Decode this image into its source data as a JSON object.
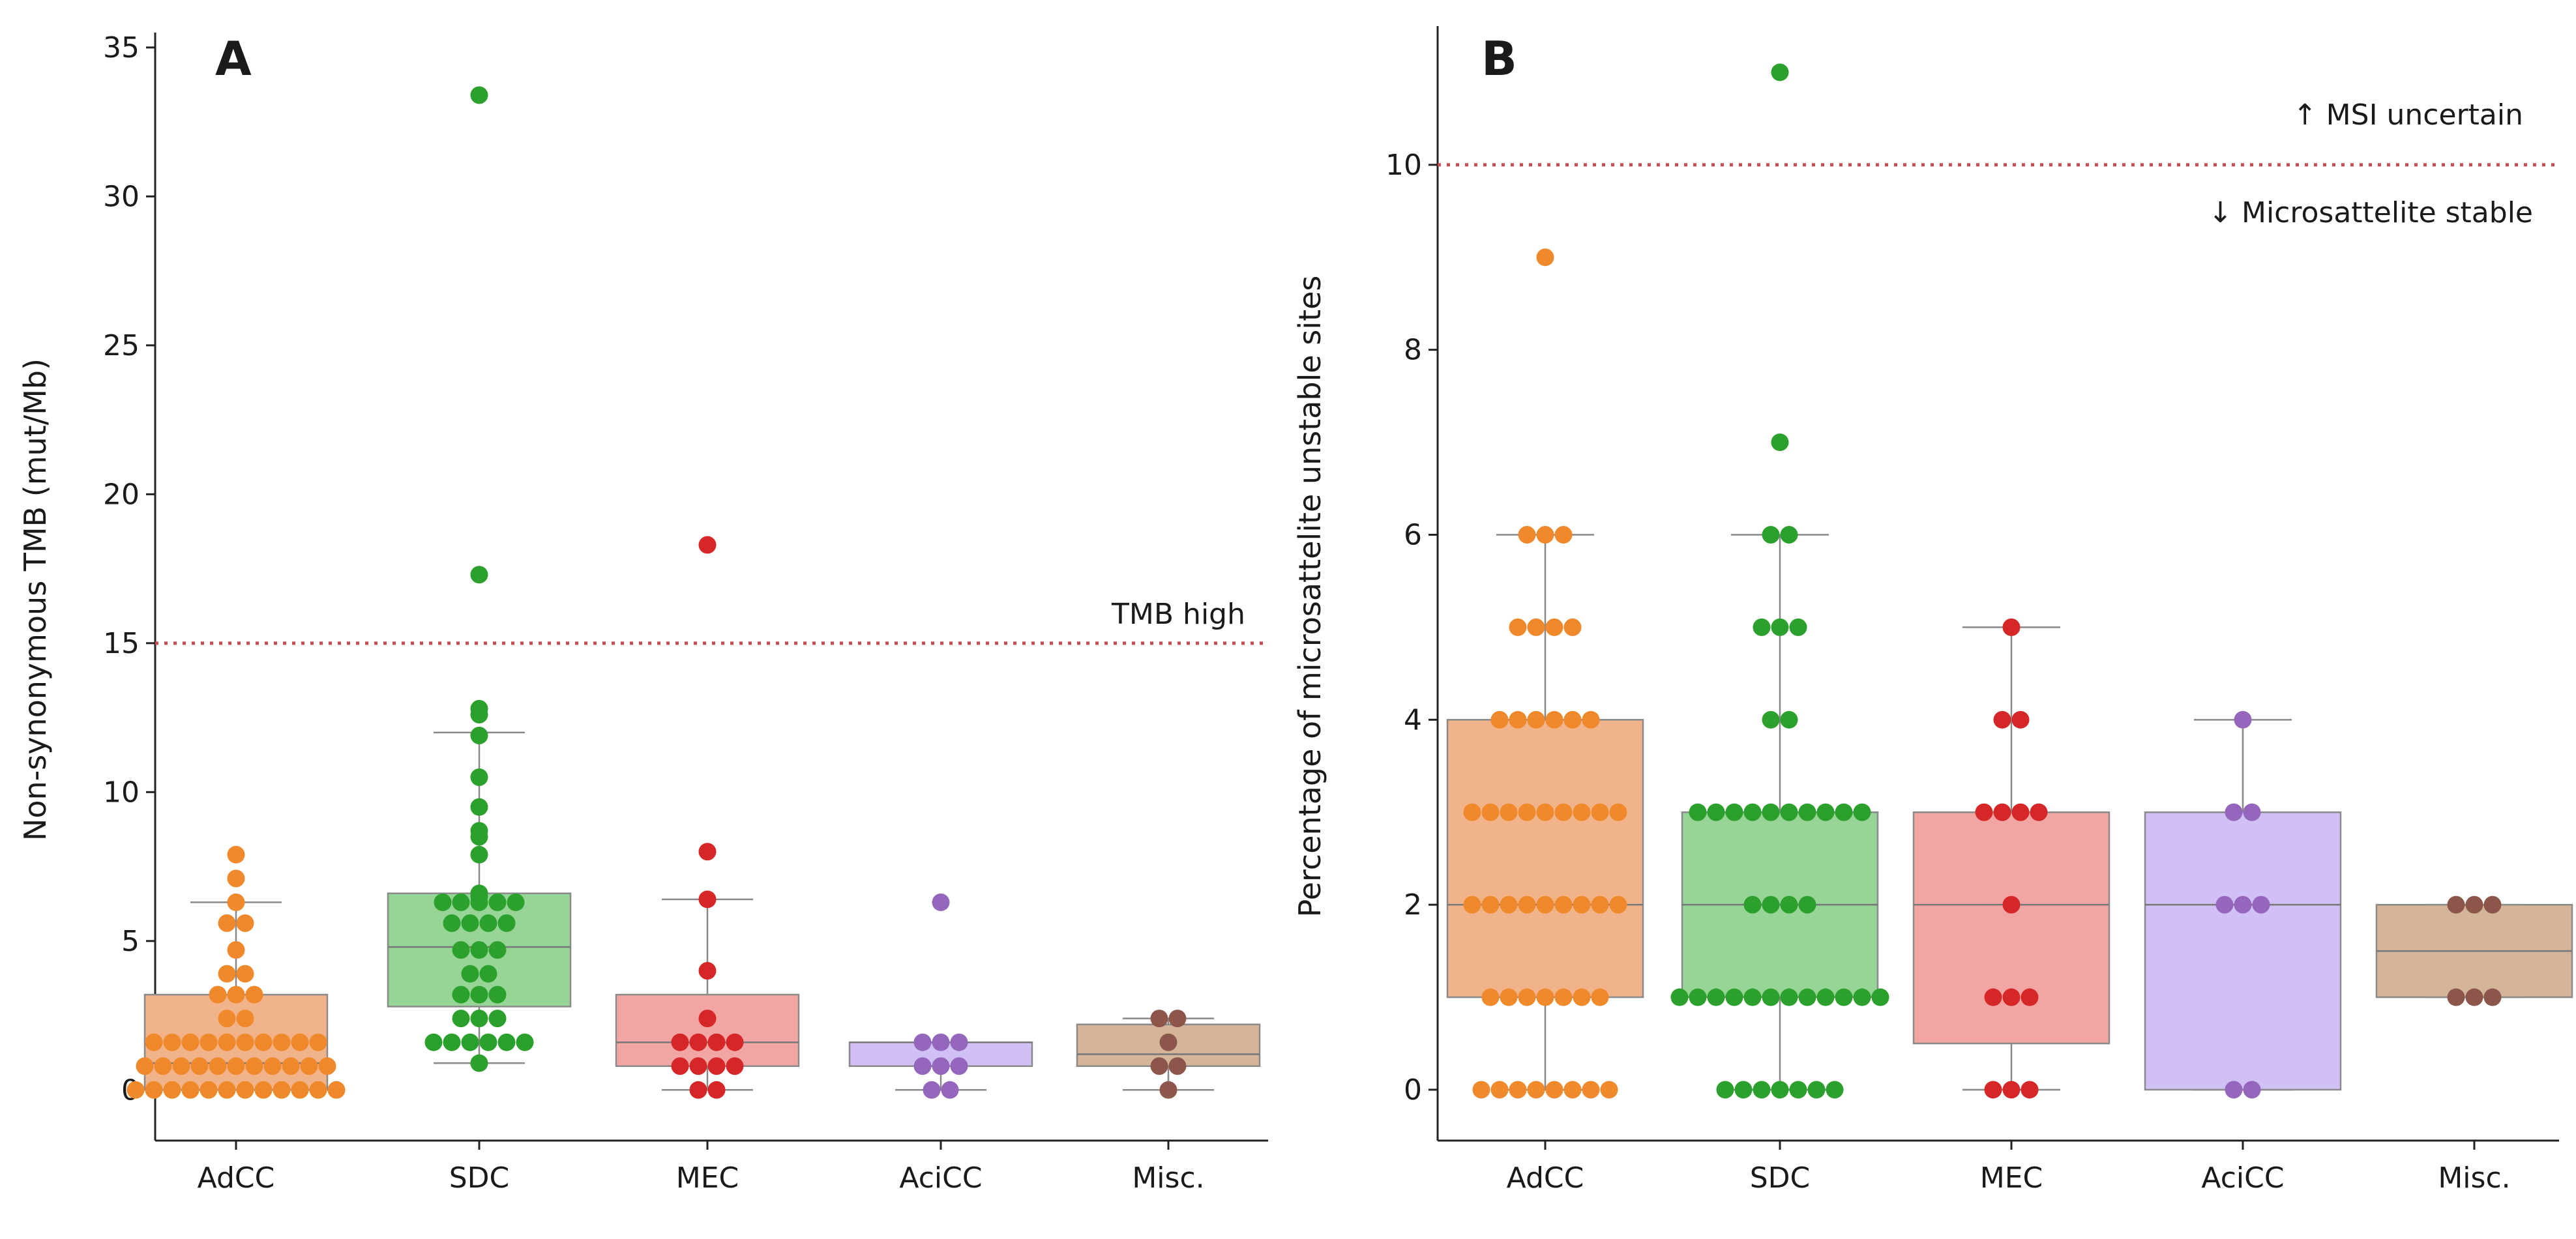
{
  "chart_data": [
    {
      "type": "box",
      "panel_label": "A",
      "ylabel": "Non-synonymous TMB (mut/Mb)",
      "ylim": [
        -1.7,
        35.5
      ],
      "yticks": [
        0,
        5,
        10,
        15,
        20,
        25,
        30,
        35
      ],
      "categories": [
        "AdCC",
        "SDC",
        "MEC",
        "AciCC",
        "Misc."
      ],
      "threshold": {
        "value": 15,
        "label": "TMB high"
      },
      "groups": [
        {
          "name": "AdCC",
          "color": "#f0892b",
          "fill": "#f1b38a",
          "q1": 0.0,
          "median": 0.9,
          "q3": 3.2,
          "whisker_low": 0,
          "whisker_high": 6.3,
          "points": [
            0,
            0,
            0,
            0,
            0,
            0,
            0,
            0,
            0,
            0,
            0,
            0,
            0.8,
            0.8,
            0.8,
            0.8,
            0.8,
            0.8,
            0.8,
            0.8,
            0.8,
            0.8,
            0.8,
            1.6,
            1.6,
            1.6,
            1.6,
            1.6,
            1.6,
            1.6,
            1.6,
            1.6,
            1.6,
            2.4,
            2.4,
            3.2,
            3.2,
            3.2,
            3.9,
            3.9,
            4.7,
            5.6,
            5.6,
            6.3,
            7.1,
            7.9
          ]
        },
        {
          "name": "SDC",
          "color": "#2ca02c",
          "fill": "#96d596",
          "q1": 2.8,
          "median": 4.8,
          "q3": 6.6,
          "whisker_low": 0.9,
          "whisker_high": 12.0,
          "points": [
            0.9,
            1.6,
            1.6,
            1.6,
            1.6,
            1.6,
            1.6,
            2.4,
            2.4,
            2.4,
            3.2,
            3.2,
            3.2,
            3.9,
            3.9,
            4.7,
            4.7,
            4.7,
            5.6,
            5.6,
            5.6,
            5.6,
            6.3,
            6.3,
            6.3,
            6.3,
            6.3,
            6.5,
            6.6,
            7.9,
            8.5,
            8.7,
            9.5,
            10.5,
            11.9,
            12.6,
            12.8,
            17.3,
            33.4
          ]
        },
        {
          "name": "MEC",
          "color": "#d62728",
          "fill": "#f2a6a3",
          "q1": 0.8,
          "median": 1.6,
          "q3": 3.2,
          "whisker_low": 0,
          "whisker_high": 6.4,
          "points": [
            0,
            0,
            0.8,
            0.8,
            0.8,
            0.8,
            1.6,
            1.6,
            1.6,
            1.6,
            2.4,
            4.0,
            6.4,
            8.0,
            18.3
          ]
        },
        {
          "name": "AciCC",
          "color": "#9467bd",
          "fill": "#d1c0f5",
          "q1": 0.8,
          "median": 1.6,
          "q3": 1.6,
          "whisker_low": 0,
          "whisker_high": 1.6,
          "points": [
            0,
            0,
            0.8,
            0.8,
            0.8,
            1.6,
            1.6,
            1.6,
            6.3
          ]
        },
        {
          "name": "Misc.",
          "color": "#8c564b",
          "fill": "#d4b59a",
          "q1": 0.8,
          "median": 1.2,
          "q3": 2.2,
          "whisker_low": 0,
          "whisker_high": 2.4,
          "points": [
            0,
            0.8,
            0.8,
            1.6,
            2.4,
            2.4
          ]
        }
      ]
    },
    {
      "type": "box",
      "panel_label": "B",
      "ylabel": "Percentage of microsattelite unstable sites",
      "ylim": [
        -0.55,
        11.5
      ],
      "yticks": [
        0,
        2,
        4,
        6,
        8,
        10
      ],
      "categories": [
        "AdCC",
        "SDC",
        "MEC",
        "AciCC",
        "Misc."
      ],
      "threshold": {
        "value": 10,
        "label_above": "↑ MSI uncertain",
        "label_below": "↓ Microsattelite stable"
      },
      "groups": [
        {
          "name": "AdCC",
          "color": "#f0892b",
          "fill": "#f1b38a",
          "q1": 1,
          "median": 2,
          "q3": 4,
          "whisker_low": 0,
          "whisker_high": 6,
          "points": [
            0,
            0,
            0,
            0,
            0,
            0,
            0,
            0,
            1,
            1,
            1,
            1,
            1,
            1,
            1,
            2,
            2,
            2,
            2,
            2,
            2,
            2,
            2,
            2,
            3,
            3,
            3,
            3,
            3,
            3,
            3,
            3,
            3,
            4,
            4,
            4,
            4,
            4,
            4,
            5,
            5,
            5,
            5,
            6,
            6,
            6,
            9
          ]
        },
        {
          "name": "SDC",
          "color": "#2ca02c",
          "fill": "#96d596",
          "q1": 1,
          "median": 2,
          "q3": 3,
          "whisker_low": 0,
          "whisker_high": 6,
          "points": [
            0,
            0,
            0,
            0,
            0,
            0,
            0,
            1,
            1,
            1,
            1,
            1,
            1,
            1,
            1,
            1,
            1,
            1,
            1,
            2,
            2,
            2,
            2,
            3,
            3,
            3,
            3,
            3,
            3,
            3,
            3,
            3,
            3,
            4,
            4,
            5,
            5,
            5,
            6,
            6,
            7,
            11
          ]
        },
        {
          "name": "MEC",
          "color": "#d62728",
          "fill": "#f2a6a3",
          "q1": 0.5,
          "median": 2,
          "q3": 3,
          "whisker_low": 0,
          "whisker_high": 5,
          "points": [
            0,
            0,
            0,
            1,
            1,
            1,
            2,
            3,
            3,
            3,
            3,
            4,
            4,
            5
          ]
        },
        {
          "name": "AciCC",
          "color": "#9467bd",
          "fill": "#d1c0f5",
          "q1": 0,
          "median": 2,
          "q3": 3,
          "whisker_low": 0,
          "whisker_high": 4,
          "points": [
            0,
            0,
            2,
            2,
            2,
            3,
            3,
            4
          ]
        },
        {
          "name": "Misc.",
          "color": "#8c564b",
          "fill": "#d4b59a",
          "q1": 1,
          "median": 1.5,
          "q3": 2,
          "whisker_low": 1,
          "whisker_high": 2,
          "points": [
            1,
            1,
            1,
            2,
            2,
            2
          ]
        }
      ]
    }
  ]
}
